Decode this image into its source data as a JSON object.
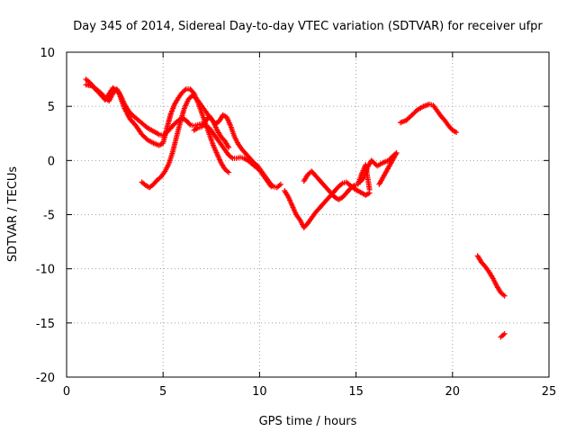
{
  "chart_data": {
    "type": "scatter",
    "title": "Day 345 of 2014, Sidereal Day-to-day VTEC variation (SDTVAR) for receiver ufpr",
    "xlabel": "GPS time / hours",
    "ylabel": "SDTVAR / TECUs",
    "xlim": [
      0,
      25
    ],
    "ylim": [
      -20,
      10
    ],
    "xticks": [
      0,
      5,
      10,
      15,
      20,
      25
    ],
    "yticks": [
      -20,
      -15,
      -10,
      -5,
      0,
      5,
      10
    ],
    "xtick_labels": [
      "0",
      "5",
      "10",
      "15",
      "20",
      "25"
    ],
    "ytick_labels": [
      "-20",
      "-15",
      "-10",
      "-5",
      "0",
      "5",
      "10"
    ],
    "grid": true,
    "marker": "+",
    "series": [
      {
        "name": "a",
        "color": "#ff0000",
        "points": [
          [
            1.0,
            7.5
          ],
          [
            1.2,
            7.2
          ],
          [
            1.4,
            6.8
          ],
          [
            1.6,
            6.5
          ],
          [
            1.8,
            6.2
          ],
          [
            2.0,
            5.8
          ],
          [
            2.2,
            5.5
          ],
          [
            2.4,
            6.2
          ],
          [
            2.6,
            6.6
          ],
          [
            2.8,
            6.0
          ],
          [
            3.0,
            5.2
          ],
          [
            3.2,
            4.6
          ],
          [
            3.4,
            4.2
          ],
          [
            3.6,
            3.9
          ],
          [
            3.8,
            3.6
          ],
          [
            4.0,
            3.3
          ],
          [
            4.2,
            3.0
          ],
          [
            4.4,
            2.8
          ],
          [
            4.6,
            2.6
          ],
          [
            4.8,
            2.4
          ],
          [
            5.0,
            2.3
          ],
          [
            5.2,
            2.6
          ],
          [
            5.4,
            3.0
          ],
          [
            5.6,
            3.4
          ],
          [
            5.8,
            3.7
          ],
          [
            6.0,
            3.9
          ],
          [
            6.2,
            3.7
          ],
          [
            6.4,
            3.3
          ],
          [
            6.6,
            3.2
          ],
          [
            6.8,
            3.3
          ],
          [
            7.0,
            3.4
          ],
          [
            7.2,
            3.2
          ],
          [
            7.4,
            3.0
          ],
          [
            7.6,
            2.5
          ],
          [
            7.8,
            2.0
          ],
          [
            8.0,
            1.5
          ],
          [
            8.2,
            1.0
          ],
          [
            8.4,
            0.5
          ],
          [
            8.6,
            0.2
          ],
          [
            8.8,
            0.2
          ],
          [
            9.0,
            0.3
          ],
          [
            9.2,
            0.2
          ],
          [
            9.4,
            0.0
          ],
          [
            9.6,
            -0.3
          ],
          [
            9.8,
            -0.6
          ],
          [
            10.0,
            -0.9
          ],
          [
            10.2,
            -1.4
          ],
          [
            10.4,
            -1.9
          ],
          [
            10.6,
            -2.4
          ]
        ]
      },
      {
        "name": "b",
        "color": "#ff0000",
        "points": [
          [
            1.0,
            7.0
          ],
          [
            1.3,
            6.9
          ],
          [
            1.6,
            6.4
          ],
          [
            2.0,
            5.6
          ],
          [
            2.4,
            6.7
          ],
          [
            2.7,
            6.3
          ],
          [
            3.0,
            4.8
          ],
          [
            3.3,
            3.8
          ],
          [
            3.6,
            3.2
          ],
          [
            3.9,
            2.4
          ],
          [
            4.2,
            1.9
          ],
          [
            4.5,
            1.6
          ],
          [
            4.8,
            1.4
          ],
          [
            5.0,
            1.6
          ],
          [
            5.2,
            3.0
          ],
          [
            5.4,
            4.3
          ],
          [
            5.6,
            5.2
          ],
          [
            5.8,
            5.8
          ],
          [
            6.0,
            6.3
          ],
          [
            6.2,
            6.6
          ],
          [
            6.4,
            6.6
          ],
          [
            6.6,
            6.2
          ],
          [
            6.8,
            5.4
          ],
          [
            7.0,
            4.4
          ],
          [
            7.2,
            3.4
          ],
          [
            7.4,
            2.4
          ],
          [
            7.6,
            1.4
          ],
          [
            7.8,
            0.6
          ],
          [
            8.0,
            -0.2
          ],
          [
            8.2,
            -0.8
          ],
          [
            8.4,
            -1.1
          ]
        ]
      },
      {
        "name": "c",
        "color": "#ff0000",
        "points": [
          [
            3.9,
            -2.0
          ],
          [
            4.1,
            -2.3
          ],
          [
            4.3,
            -2.5
          ],
          [
            4.5,
            -2.2
          ],
          [
            4.7,
            -1.8
          ],
          [
            4.9,
            -1.5
          ],
          [
            5.1,
            -1.0
          ],
          [
            5.3,
            -0.3
          ],
          [
            5.5,
            0.8
          ],
          [
            5.7,
            2.2
          ],
          [
            5.9,
            3.6
          ],
          [
            6.1,
            4.8
          ],
          [
            6.3,
            5.6
          ],
          [
            6.5,
            6.0
          ],
          [
            6.7,
            5.8
          ],
          [
            6.9,
            5.3
          ],
          [
            7.1,
            4.8
          ],
          [
            7.3,
            4.3
          ],
          [
            7.5,
            3.8
          ],
          [
            7.7,
            3.4
          ],
          [
            7.9,
            3.6
          ],
          [
            8.1,
            4.2
          ],
          [
            8.3,
            4.0
          ],
          [
            8.5,
            3.2
          ],
          [
            8.7,
            2.2
          ],
          [
            8.9,
            1.5
          ],
          [
            9.1,
            1.0
          ],
          [
            9.3,
            0.6
          ],
          [
            9.5,
            0.2
          ],
          [
            9.7,
            -0.2
          ],
          [
            9.9,
            -0.5
          ],
          [
            10.1,
            -1.0
          ],
          [
            10.3,
            -1.5
          ],
          [
            10.5,
            -2.0
          ],
          [
            10.7,
            -2.4
          ],
          [
            10.9,
            -2.5
          ],
          [
            11.1,
            -2.2
          ]
        ]
      },
      {
        "name": "d",
        "color": "#ff0000",
        "points": [
          [
            6.6,
            2.8
          ],
          [
            6.8,
            3.0
          ],
          [
            7.0,
            3.1
          ],
          [
            7.2,
            3.6
          ],
          [
            7.4,
            4.1
          ],
          [
            7.6,
            3.6
          ],
          [
            7.8,
            2.8
          ],
          [
            8.0,
            2.2
          ],
          [
            8.2,
            1.8
          ],
          [
            8.4,
            1.2
          ]
        ]
      },
      {
        "name": "e",
        "color": "#ff0000",
        "points": [
          [
            11.3,
            -2.8
          ],
          [
            11.5,
            -3.4
          ],
          [
            11.7,
            -4.2
          ],
          [
            11.9,
            -5.0
          ],
          [
            12.1,
            -5.5
          ],
          [
            12.3,
            -6.2
          ],
          [
            12.5,
            -5.8
          ],
          [
            12.7,
            -5.3
          ],
          [
            12.9,
            -4.8
          ],
          [
            13.1,
            -4.4
          ],
          [
            13.3,
            -4.0
          ],
          [
            13.5,
            -3.6
          ],
          [
            13.7,
            -3.2
          ],
          [
            13.9,
            -2.8
          ],
          [
            14.1,
            -2.4
          ],
          [
            14.3,
            -2.1
          ],
          [
            14.5,
            -2.0
          ],
          [
            14.7,
            -2.3
          ],
          [
            14.9,
            -2.6
          ],
          [
            15.1,
            -2.8
          ],
          [
            15.3,
            -3.0
          ],
          [
            15.5,
            -3.2
          ],
          [
            15.7,
            -3.0
          ]
        ]
      },
      {
        "name": "f",
        "color": "#ff0000",
        "points": [
          [
            12.3,
            -1.9
          ],
          [
            12.5,
            -1.3
          ],
          [
            12.7,
            -1.0
          ],
          [
            12.9,
            -1.4
          ],
          [
            13.1,
            -1.8
          ],
          [
            13.3,
            -2.2
          ],
          [
            13.5,
            -2.6
          ],
          [
            13.7,
            -3.0
          ],
          [
            13.9,
            -3.4
          ],
          [
            14.1,
            -3.6
          ],
          [
            14.3,
            -3.4
          ],
          [
            14.5,
            -3.0
          ],
          [
            14.7,
            -2.6
          ],
          [
            14.9,
            -2.3
          ],
          [
            15.1,
            -2.2
          ],
          [
            15.3,
            -1.2
          ],
          [
            15.5,
            -0.4
          ],
          [
            15.7,
            -2.7
          ]
        ]
      },
      {
        "name": "g",
        "color": "#ff0000",
        "points": [
          [
            15.2,
            -2.0
          ],
          [
            15.4,
            -1.6
          ],
          [
            15.6,
            -0.6
          ],
          [
            15.8,
            0.0
          ],
          [
            16.1,
            -0.5
          ],
          [
            16.4,
            -0.2
          ],
          [
            16.7,
            0.0
          ],
          [
            16.9,
            0.4
          ],
          [
            17.1,
            0.7
          ],
          [
            16.2,
            -2.2
          ]
        ]
      },
      {
        "name": "h",
        "color": "#ff0000",
        "points": [
          [
            17.3,
            3.5
          ],
          [
            17.6,
            3.7
          ],
          [
            17.9,
            4.2
          ],
          [
            18.2,
            4.7
          ],
          [
            18.5,
            5.0
          ],
          [
            18.8,
            5.2
          ],
          [
            19.0,
            5.1
          ],
          [
            19.2,
            4.6
          ],
          [
            19.4,
            4.1
          ],
          [
            19.6,
            3.7
          ],
          [
            19.8,
            3.2
          ],
          [
            20.0,
            2.8
          ],
          [
            20.2,
            2.6
          ]
        ]
      },
      {
        "name": "i",
        "color": "#ff0000",
        "points": [
          [
            21.3,
            -8.8
          ],
          [
            21.5,
            -9.4
          ],
          [
            21.7,
            -9.8
          ],
          [
            21.9,
            -10.3
          ],
          [
            22.1,
            -10.9
          ],
          [
            22.3,
            -11.6
          ],
          [
            22.5,
            -12.2
          ],
          [
            22.7,
            -12.5
          ],
          [
            22.5,
            -16.3
          ],
          [
            22.7,
            -16.0
          ]
        ]
      }
    ]
  }
}
